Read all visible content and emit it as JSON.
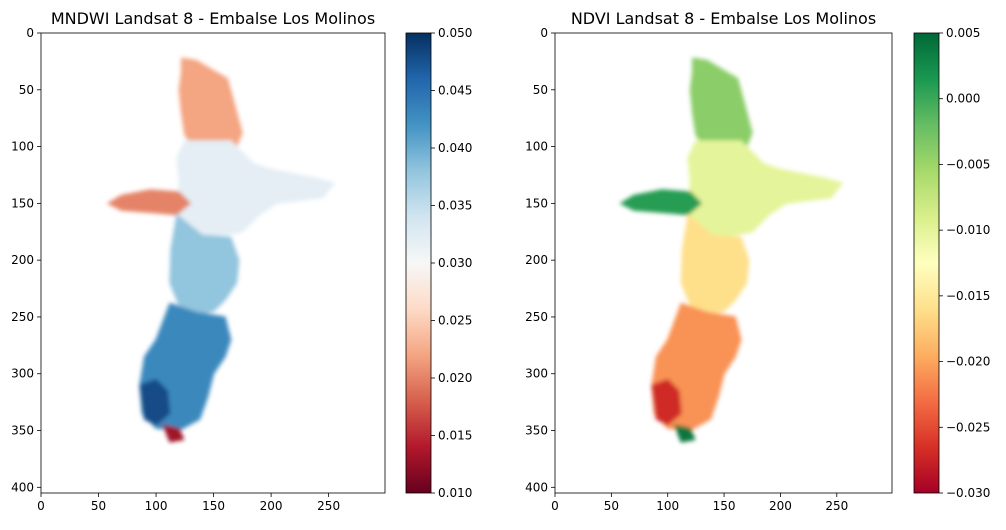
{
  "chart_data": [
    {
      "type": "heatmap",
      "title": "MNDWI Landsat 8 - Embalse Los Molinos",
      "xlabel": "",
      "ylabel": "",
      "xlim": [
        0,
        299
      ],
      "ylim": [
        405,
        0
      ],
      "xticks": [
        0,
        50,
        100,
        150,
        200,
        250
      ],
      "yticks": [
        0,
        50,
        100,
        150,
        200,
        250,
        300,
        350,
        400
      ],
      "grid": false,
      "colormap": "RdBu",
      "colorbar": {
        "range": [
          0.01,
          0.05
        ],
        "ticks": [
          "0.010",
          "0.015",
          "0.020",
          "0.025",
          "0.030",
          "0.035",
          "0.040",
          "0.045",
          "0.050"
        ],
        "colors": [
          "#67001f",
          "#b2182b",
          "#d6604d",
          "#f4a582",
          "#fddbc7",
          "#f7f7f7",
          "#d1e5f0",
          "#92c5de",
          "#4393c3",
          "#2166ac",
          "#053061"
        ]
      },
      "regions": [
        {
          "polygon": [
            [
              122,
              22
            ],
            [
              135,
              24
            ],
            [
              150,
              33
            ],
            [
              162,
              40
            ],
            [
              168,
              62
            ],
            [
              175,
              88
            ],
            [
              170,
              100
            ],
            [
              150,
              105
            ],
            [
              135,
              103
            ],
            [
              125,
              90
            ],
            [
              122,
              70
            ],
            [
              120,
              50
            ],
            [
              122,
              35
            ]
          ],
          "value": 0.022
        },
        {
          "polygon": [
            [
              125,
              95
            ],
            [
              165,
              95
            ],
            [
              185,
              115
            ],
            [
              200,
              120
            ],
            [
              240,
              128
            ],
            [
              255,
              132
            ],
            [
              245,
              145
            ],
            [
              205,
              150
            ],
            [
              190,
              160
            ],
            [
              175,
              175
            ],
            [
              160,
              178
            ],
            [
              140,
              180
            ],
            [
              125,
              175
            ],
            [
              118,
              160
            ],
            [
              120,
              130
            ],
            [
              118,
              110
            ]
          ],
          "value": 0.032
        },
        {
          "polygon": [
            [
              58,
              150
            ],
            [
              70,
              143
            ],
            [
              95,
              138
            ],
            [
              120,
              140
            ],
            [
              130,
              150
            ],
            [
              118,
              160
            ],
            [
              95,
              158
            ],
            [
              70,
              156
            ]
          ],
          "value": 0.02
        },
        {
          "polygon": [
            [
              118,
              160
            ],
            [
              140,
              178
            ],
            [
              165,
              180
            ],
            [
              172,
              200
            ],
            [
              170,
              220
            ],
            [
              160,
              235
            ],
            [
              150,
              245
            ],
            [
              135,
              248
            ],
            [
              120,
              240
            ],
            [
              112,
              220
            ],
            [
              113,
              190
            ]
          ],
          "value": 0.038
        },
        {
          "polygon": [
            [
              112,
              238
            ],
            [
              135,
              246
            ],
            [
              160,
              250
            ],
            [
              165,
              270
            ],
            [
              160,
              285
            ],
            [
              150,
              300
            ],
            [
              145,
              320
            ],
            [
              138,
              340
            ],
            [
              120,
              350
            ],
            [
              100,
              348
            ],
            [
              88,
              335
            ],
            [
              86,
              310
            ],
            [
              90,
              285
            ],
            [
              100,
              270
            ]
          ],
          "value": 0.043
        },
        {
          "polygon": [
            [
              86,
              310
            ],
            [
              100,
              305
            ],
            [
              110,
              315
            ],
            [
              112,
              335
            ],
            [
              100,
              345
            ],
            [
              90,
              340
            ]
          ],
          "value": 0.048
        },
        {
          "polygon": [
            [
              106,
              345
            ],
            [
              120,
              348
            ],
            [
              124,
              358
            ],
            [
              112,
              360
            ]
          ],
          "value": 0.013
        }
      ]
    },
    {
      "type": "heatmap",
      "title": "NDVI Landsat 8 - Embalse Los Molinos",
      "xlabel": "",
      "ylabel": "",
      "xlim": [
        0,
        299
      ],
      "ylim": [
        405,
        0
      ],
      "xticks": [
        0,
        50,
        100,
        150,
        200,
        250
      ],
      "yticks": [
        0,
        50,
        100,
        150,
        200,
        250,
        300,
        350,
        400
      ],
      "grid": false,
      "colormap": "RdYlGn",
      "colorbar": {
        "range": [
          -0.03,
          0.005
        ],
        "ticks": [
          "−0.030",
          "−0.025",
          "−0.020",
          "−0.015",
          "−0.010",
          "−0.005",
          "0.000",
          "0.005"
        ],
        "colors": [
          "#a50026",
          "#d73027",
          "#f46d43",
          "#fdae61",
          "#fee08b",
          "#ffffbf",
          "#d9ef8b",
          "#a6d96a",
          "#66bd63",
          "#1a9850",
          "#006837"
        ]
      },
      "regions": [
        {
          "polygon": [
            [
              122,
              22
            ],
            [
              135,
              24
            ],
            [
              150,
              33
            ],
            [
              162,
              40
            ],
            [
              168,
              62
            ],
            [
              175,
              88
            ],
            [
              170,
              100
            ],
            [
              150,
              105
            ],
            [
              135,
              103
            ],
            [
              125,
              90
            ],
            [
              122,
              70
            ],
            [
              120,
              50
            ],
            [
              122,
              35
            ]
          ],
          "value": -0.004
        },
        {
          "polygon": [
            [
              125,
              95
            ],
            [
              165,
              95
            ],
            [
              185,
              115
            ],
            [
              200,
              120
            ],
            [
              240,
              128
            ],
            [
              255,
              132
            ],
            [
              245,
              145
            ],
            [
              205,
              150
            ],
            [
              190,
              160
            ],
            [
              175,
              175
            ],
            [
              160,
              178
            ],
            [
              140,
              180
            ],
            [
              125,
              175
            ],
            [
              118,
              160
            ],
            [
              120,
              130
            ],
            [
              118,
              110
            ]
          ],
          "value": -0.01
        },
        {
          "polygon": [
            [
              58,
              150
            ],
            [
              70,
              143
            ],
            [
              95,
              138
            ],
            [
              120,
              140
            ],
            [
              130,
              150
            ],
            [
              118,
              160
            ],
            [
              95,
              158
            ],
            [
              70,
              156
            ]
          ],
          "value": 0.001
        },
        {
          "polygon": [
            [
              118,
              160
            ],
            [
              140,
              178
            ],
            [
              165,
              180
            ],
            [
              172,
              200
            ],
            [
              170,
              220
            ],
            [
              160,
              235
            ],
            [
              150,
              245
            ],
            [
              135,
              248
            ],
            [
              120,
              240
            ],
            [
              112,
              220
            ],
            [
              113,
              190
            ]
          ],
          "value": -0.016
        },
        {
          "polygon": [
            [
              112,
              238
            ],
            [
              135,
              246
            ],
            [
              160,
              250
            ],
            [
              165,
              270
            ],
            [
              160,
              285
            ],
            [
              150,
              300
            ],
            [
              145,
              320
            ],
            [
              138,
              340
            ],
            [
              120,
              350
            ],
            [
              100,
              348
            ],
            [
              88,
              335
            ],
            [
              86,
              310
            ],
            [
              90,
              285
            ],
            [
              100,
              270
            ]
          ],
          "value": -0.021
        },
        {
          "polygon": [
            [
              86,
              310
            ],
            [
              100,
              305
            ],
            [
              110,
              315
            ],
            [
              112,
              335
            ],
            [
              100,
              345
            ],
            [
              90,
              340
            ]
          ],
          "value": -0.027
        },
        {
          "polygon": [
            [
              106,
              345
            ],
            [
              120,
              348
            ],
            [
              124,
              358
            ],
            [
              112,
              360
            ]
          ],
          "value": 0.004
        }
      ]
    }
  ]
}
